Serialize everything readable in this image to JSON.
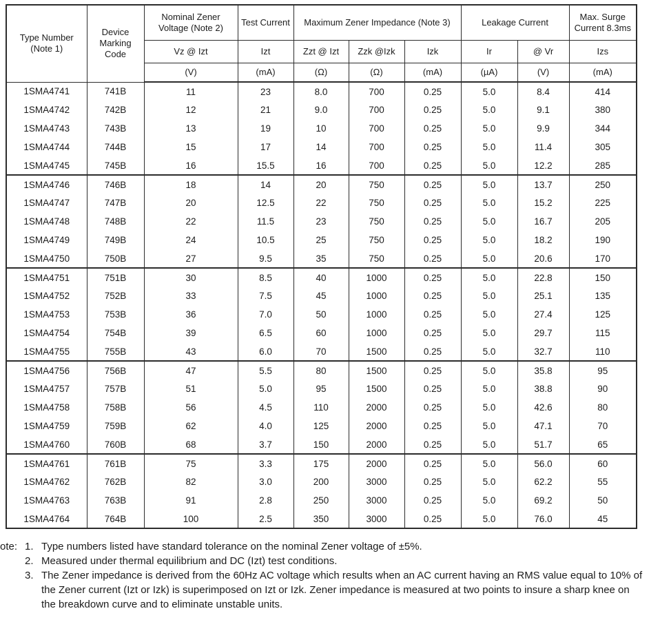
{
  "table": {
    "header": {
      "type_number": "Type Number (Note 1)",
      "device_marking": "Device Marking Code",
      "nominal_zener_voltage": "Nominal Zener Voltage (Note 2)",
      "test_current": "Test Current",
      "max_zener_impedance": "Maximum Zener Impedance (Note 3)",
      "leakage_current": "Leakage Current",
      "max_surge_current": "Max. Surge Current 8.3ms",
      "sub": [
        "Vz @ Izt",
        "Izt",
        "Zzt @ Izt",
        "Zzk @Izk",
        "Izk",
        "Ir",
        "@ Vr",
        "Izs"
      ],
      "units": [
        "(V)",
        "(mA)",
        "(Ω)",
        "(Ω)",
        "(mA)",
        "(µA)",
        "(V)",
        "(mA)"
      ]
    },
    "groups": [
      {
        "rows": [
          [
            "1SMA4741",
            "741B",
            "11",
            "23",
            "8.0",
            "700",
            "0.25",
            "5.0",
            "8.4",
            "414"
          ],
          [
            "1SMA4742",
            "742B",
            "12",
            "21",
            "9.0",
            "700",
            "0.25",
            "5.0",
            "9.1",
            "380"
          ],
          [
            "1SMA4743",
            "743B",
            "13",
            "19",
            "10",
            "700",
            "0.25",
            "5.0",
            "9.9",
            "344"
          ],
          [
            "1SMA4744",
            "744B",
            "15",
            "17",
            "14",
            "700",
            "0.25",
            "5.0",
            "11.4",
            "305"
          ],
          [
            "1SMA4745",
            "745B",
            "16",
            "15.5",
            "16",
            "700",
            "0.25",
            "5.0",
            "12.2",
            "285"
          ]
        ]
      },
      {
        "rows": [
          [
            "1SMA4746",
            "746B",
            "18",
            "14",
            "20",
            "750",
            "0.25",
            "5.0",
            "13.7",
            "250"
          ],
          [
            "1SMA4747",
            "747B",
            "20",
            "12.5",
            "22",
            "750",
            "0.25",
            "5.0",
            "15.2",
            "225"
          ],
          [
            "1SMA4748",
            "748B",
            "22",
            "11.5",
            "23",
            "750",
            "0.25",
            "5.0",
            "16.7",
            "205"
          ],
          [
            "1SMA4749",
            "749B",
            "24",
            "10.5",
            "25",
            "750",
            "0.25",
            "5.0",
            "18.2",
            "190"
          ],
          [
            "1SMA4750",
            "750B",
            "27",
            "9.5",
            "35",
            "750",
            "0.25",
            "5.0",
            "20.6",
            "170"
          ]
        ]
      },
      {
        "rows": [
          [
            "1SMA4751",
            "751B",
            "30",
            "8.5",
            "40",
            "1000",
            "0.25",
            "5.0",
            "22.8",
            "150"
          ],
          [
            "1SMA4752",
            "752B",
            "33",
            "7.5",
            "45",
            "1000",
            "0.25",
            "5.0",
            "25.1",
            "135"
          ],
          [
            "1SMA4753",
            "753B",
            "36",
            "7.0",
            "50",
            "1000",
            "0.25",
            "5.0",
            "27.4",
            "125"
          ],
          [
            "1SMA4754",
            "754B",
            "39",
            "6.5",
            "60",
            "1000",
            "0.25",
            "5.0",
            "29.7",
            "115"
          ],
          [
            "1SMA4755",
            "755B",
            "43",
            "6.0",
            "70",
            "1500",
            "0.25",
            "5.0",
            "32.7",
            "110"
          ]
        ]
      },
      {
        "rows": [
          [
            "1SMA4756",
            "756B",
            "47",
            "5.5",
            "80",
            "1500",
            "0.25",
            "5.0",
            "35.8",
            "95"
          ],
          [
            "1SMA4757",
            "757B",
            "51",
            "5.0",
            "95",
            "1500",
            "0.25",
            "5.0",
            "38.8",
            "90"
          ],
          [
            "1SMA4758",
            "758B",
            "56",
            "4.5",
            "110",
            "2000",
            "0.25",
            "5.0",
            "42.6",
            "80"
          ],
          [
            "1SMA4759",
            "759B",
            "62",
            "4.0",
            "125",
            "2000",
            "0.25",
            "5.0",
            "47.1",
            "70"
          ],
          [
            "1SMA4760",
            "760B",
            "68",
            "3.7",
            "150",
            "2000",
            "0.25",
            "5.0",
            "51.7",
            "65"
          ]
        ]
      },
      {
        "rows": [
          [
            "1SMA4761",
            "761B",
            "75",
            "3.3",
            "175",
            "2000",
            "0.25",
            "5.0",
            "56.0",
            "60"
          ],
          [
            "1SMA4762",
            "762B",
            "82",
            "3.0",
            "200",
            "3000",
            "0.25",
            "5.0",
            "62.2",
            "55"
          ],
          [
            "1SMA4763",
            "763B",
            "91",
            "2.8",
            "250",
            "3000",
            "0.25",
            "5.0",
            "69.2",
            "50"
          ],
          [
            "1SMA4764",
            "764B",
            "100",
            "2.5",
            "350",
            "3000",
            "0.25",
            "5.0",
            "76.0",
            "45"
          ]
        ]
      }
    ]
  },
  "notes": {
    "label": "ote:",
    "items": [
      {
        "num": "1.",
        "text": "Type numbers listed have standard tolerance on the nominal Zener voltage of ±5%."
      },
      {
        "num": "2.",
        "text": "Measured under thermal equilibrium and DC (Izt) test conditions."
      },
      {
        "num": "3.",
        "text": "The Zener impedance is derived from the 60Hz AC voltage which results when an AC current having an RMS value equal to 10% of the Zener current (Izt or Izk) is superimposed on Izt or Izk. Zener impedance is measured at two points to insure a sharp knee on the breakdown curve and to eliminate unstable units."
      }
    ]
  }
}
